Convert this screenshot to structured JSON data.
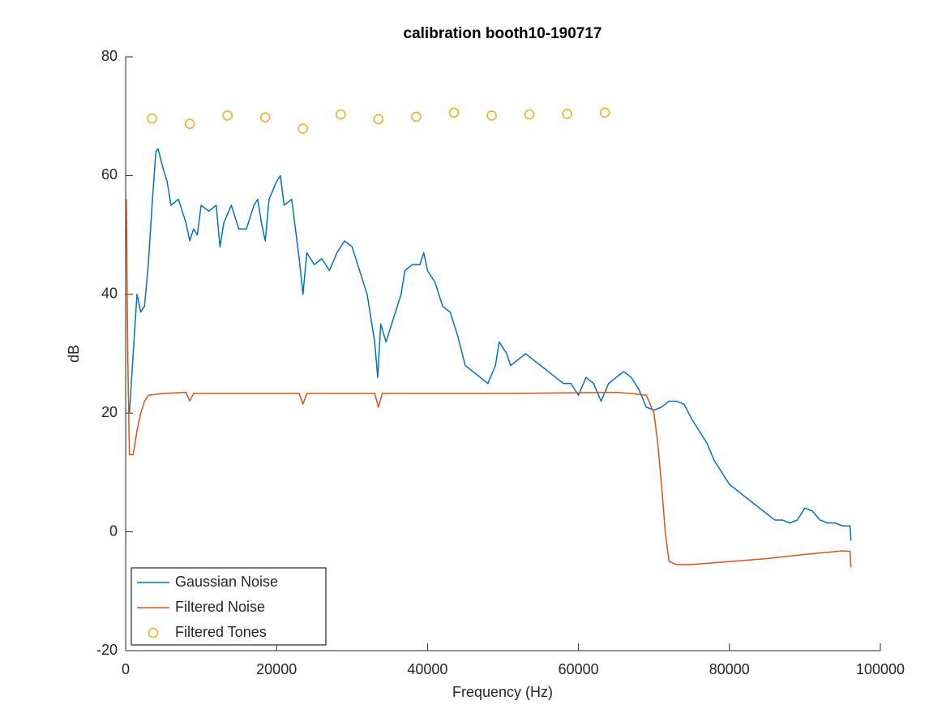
{
  "chart_data": {
    "type": "line",
    "title": "calibration booth10-190717",
    "x_label": "Frequency (Hz)",
    "y_label": "dB",
    "xlim": [
      0,
      100000
    ],
    "xticks": [
      0,
      20000,
      40000,
      60000,
      80000,
      100000
    ],
    "ylim": [
      -20,
      80
    ],
    "yticks": [
      -20,
      0,
      20,
      40,
      60,
      80
    ],
    "grid": false,
    "legend": "lower left",
    "series": [
      {
        "name": "Gaussian Noise",
        "color": "#0072bd",
        "mode": "lines",
        "x": [
          500,
          1000,
          1500,
          2000,
          2500,
          3000,
          3500,
          4000,
          4300,
          5000,
          5500,
          6000,
          7000,
          8000,
          8500,
          9000,
          9500,
          10000,
          11000,
          12000,
          12500,
          13000,
          14000,
          15000,
          16000,
          17000,
          17500,
          18000,
          18500,
          19000,
          20000,
          20500,
          21000,
          22000,
          23000,
          23500,
          24000,
          25000,
          26000,
          27000,
          28000,
          29000,
          30000,
          31000,
          32000,
          33000,
          33400,
          33800,
          34500,
          35500,
          36500,
          37000,
          38000,
          39000,
          39500,
          40000,
          41000,
          42000,
          43000,
          44000,
          45000,
          46000,
          47000,
          48000,
          49000,
          49500,
          50500,
          51000,
          52000,
          53000,
          54000,
          55000,
          56000,
          57000,
          58000,
          59000,
          60000,
          61000,
          62000,
          63000,
          64000,
          65000,
          66000,
          67000,
          68000,
          69000,
          70000,
          71000,
          72000,
          73000,
          74000,
          75000,
          76000,
          77000,
          78000,
          79000,
          80000,
          81000,
          82000,
          83000,
          84000,
          85000,
          86000,
          87000,
          88000,
          89000,
          90000,
          91000,
          92000,
          93000,
          94000,
          95000,
          96000,
          96100
        ],
        "values": [
          20,
          30,
          40,
          37,
          38,
          45,
          55,
          64,
          64.5,
          61,
          59,
          55,
          56,
          52,
          49,
          51,
          50,
          55,
          54,
          55,
          48,
          52,
          55,
          51,
          51,
          55,
          56,
          52,
          49,
          56,
          59,
          60,
          55,
          56,
          46,
          40,
          47,
          45,
          46,
          44,
          47,
          49,
          48,
          44,
          40,
          32,
          26,
          35,
          32,
          36,
          40,
          44,
          45,
          45,
          47,
          44,
          42,
          38,
          37,
          33,
          28,
          27,
          26,
          25,
          28,
          32,
          30,
          28,
          29,
          30,
          29,
          28,
          27,
          26,
          25,
          25,
          23,
          26,
          25,
          22,
          25,
          26,
          27,
          26,
          24,
          21,
          20.5,
          21,
          22,
          22,
          21.5,
          19,
          17,
          15,
          12,
          10,
          8,
          7,
          6,
          5,
          4,
          3,
          2,
          2,
          1.5,
          2,
          4,
          3.5,
          2,
          1.5,
          1.5,
          1,
          1,
          -1.5
        ]
      },
      {
        "name": "Filtered Noise",
        "color": "#d95319",
        "mode": "lines",
        "x": [
          100,
          200,
          300,
          500,
          1000,
          1500,
          2000,
          2500,
          3000,
          5000,
          8000,
          8500,
          9000,
          20000,
          23000,
          23500,
          24000,
          33000,
          33500,
          34000,
          50000,
          65000,
          67000,
          69000,
          70000,
          70500,
          71000,
          71500,
          72000,
          73000,
          75000,
          80000,
          85000,
          90000,
          95000,
          96000,
          96100
        ],
        "values": [
          56,
          40,
          28,
          13,
          13,
          17,
          20,
          22,
          23,
          23.3,
          23.5,
          22,
          23.3,
          23.3,
          23.3,
          21.5,
          23.3,
          23.3,
          21,
          23.3,
          23.3,
          23.5,
          23.3,
          23,
          20,
          15,
          8,
          0,
          -5,
          -5.5,
          -5.5,
          -5,
          -4.5,
          -3.8,
          -3.2,
          -3.3,
          -6
        ]
      },
      {
        "name": "Filtered Tones",
        "color": "#edb120",
        "mode": "markers",
        "x": [
          3500,
          8500,
          13500,
          18500,
          23500,
          28500,
          33500,
          38500,
          43500,
          48500,
          53500,
          58500,
          63500
        ],
        "values": [
          69.6,
          68.7,
          70.1,
          69.8,
          67.9,
          70.3,
          69.5,
          69.9,
          70.6,
          70.1,
          70.3,
          70.4,
          70.6
        ]
      }
    ]
  }
}
